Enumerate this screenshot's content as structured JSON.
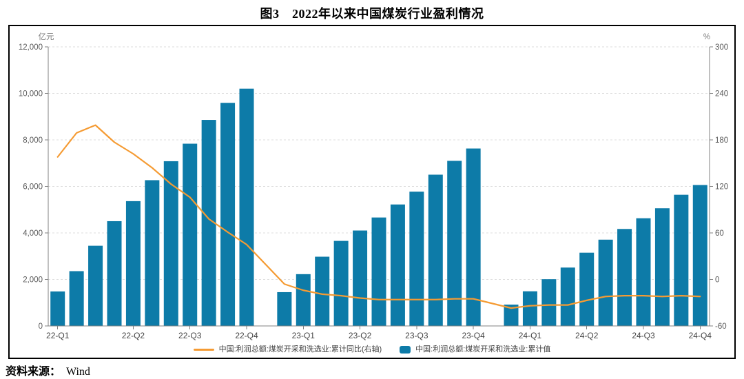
{
  "title": "图3　2022年以来中国煤炭行业盈利情况",
  "source": {
    "prefix": "资料来源：",
    "name": "Wind"
  },
  "colors": {
    "bar": "#0D7BA8",
    "line": "#F59B33",
    "grid": "#DCDCDC",
    "axis": "#808080",
    "tick_text": "#595959",
    "x_text": "#444444",
    "frame_border": "#000000"
  },
  "chart_data": {
    "type": "bar",
    "title": "图3 2022年以来中国煤炭行业盈利情况",
    "slots": 35,
    "left_axis": {
      "unit": "亿元",
      "min": 0,
      "max": 12000,
      "ticks": [
        0,
        2000,
        4000,
        6000,
        8000,
        10000,
        12000
      ],
      "tick_labels": [
        "0",
        "2,000",
        "4,000",
        "6,000",
        "8,000",
        "10,000",
        "12,000"
      ]
    },
    "right_axis": {
      "unit": "%",
      "min": -60,
      "max": 300,
      "ticks": [
        -60,
        0,
        60,
        120,
        180,
        240,
        300
      ],
      "tick_labels": [
        "-60",
        "0",
        "60",
        "120",
        "180",
        "240",
        "300"
      ]
    },
    "x_quarter_ticks": [
      {
        "label": "22-Q1",
        "slot": 0
      },
      {
        "label": "22-Q2",
        "slot": 4
      },
      {
        "label": "22-Q3",
        "slot": 7
      },
      {
        "label": "22-Q4",
        "slot": 10
      },
      {
        "label": "23-Q1",
        "slot": 13
      },
      {
        "label": "23-Q2",
        "slot": 16
      },
      {
        "label": "23-Q3",
        "slot": 19
      },
      {
        "label": "23-Q4",
        "slot": 22
      },
      {
        "label": "24-Q1",
        "slot": 25
      },
      {
        "label": "24-Q2",
        "slot": 28
      },
      {
        "label": "24-Q3",
        "slot": 31
      },
      {
        "label": "24-Q4",
        "slot": 34
      }
    ],
    "series": [
      {
        "name": "中国:利润总额:煤炭开采和洗选业:累计同比(右轴)",
        "type": "line",
        "axis": "right",
        "color": "#F59B33",
        "points": [
          [
            0,
            158
          ],
          [
            1,
            189
          ],
          [
            2,
            199
          ],
          [
            3,
            177
          ],
          [
            4,
            162
          ],
          [
            5,
            144
          ],
          [
            6,
            123
          ],
          [
            7,
            106
          ],
          [
            8,
            78
          ],
          [
            9,
            61
          ],
          [
            10,
            45
          ],
          [
            12,
            -6
          ],
          [
            13,
            -14
          ],
          [
            14,
            -19
          ],
          [
            15,
            -21
          ],
          [
            16,
            -24
          ],
          [
            17,
            -26
          ],
          [
            18,
            -26
          ],
          [
            19,
            -26
          ],
          [
            20,
            -26
          ],
          [
            21,
            -25
          ],
          [
            22,
            -25
          ],
          [
            24,
            -37
          ],
          [
            25,
            -34
          ],
          [
            26,
            -33
          ],
          [
            27,
            -33
          ],
          [
            28,
            -27
          ],
          [
            29,
            -22
          ],
          [
            30,
            -21
          ],
          [
            31,
            -21
          ],
          [
            32,
            -22
          ],
          [
            33,
            -21
          ],
          [
            34,
            -22
          ]
        ]
      },
      {
        "name": "中国:利润总额:煤炭开采和洗选业:累计值",
        "type": "bar",
        "axis": "left",
        "color": "#0D7BA8",
        "points": [
          [
            0,
            1483
          ],
          [
            1,
            2356
          ],
          [
            2,
            3448
          ],
          [
            3,
            4505
          ],
          [
            4,
            5366
          ],
          [
            5,
            6268
          ],
          [
            6,
            7083
          ],
          [
            7,
            7836
          ],
          [
            8,
            8858
          ],
          [
            9,
            9593
          ],
          [
            10,
            10202
          ],
          [
            12,
            1453
          ],
          [
            13,
            2227
          ],
          [
            14,
            2977
          ],
          [
            15,
            3657
          ],
          [
            16,
            4103
          ],
          [
            17,
            4663
          ],
          [
            18,
            5223
          ],
          [
            19,
            5775
          ],
          [
            20,
            6504
          ],
          [
            21,
            7099
          ],
          [
            22,
            7629
          ],
          [
            24,
            917
          ],
          [
            25,
            1490
          ],
          [
            26,
            2010
          ],
          [
            27,
            2510
          ],
          [
            28,
            3150
          ],
          [
            29,
            3710
          ],
          [
            30,
            4170
          ],
          [
            31,
            4630
          ],
          [
            32,
            5060
          ],
          [
            33,
            5640
          ],
          [
            34,
            6060
          ]
        ]
      }
    ]
  }
}
